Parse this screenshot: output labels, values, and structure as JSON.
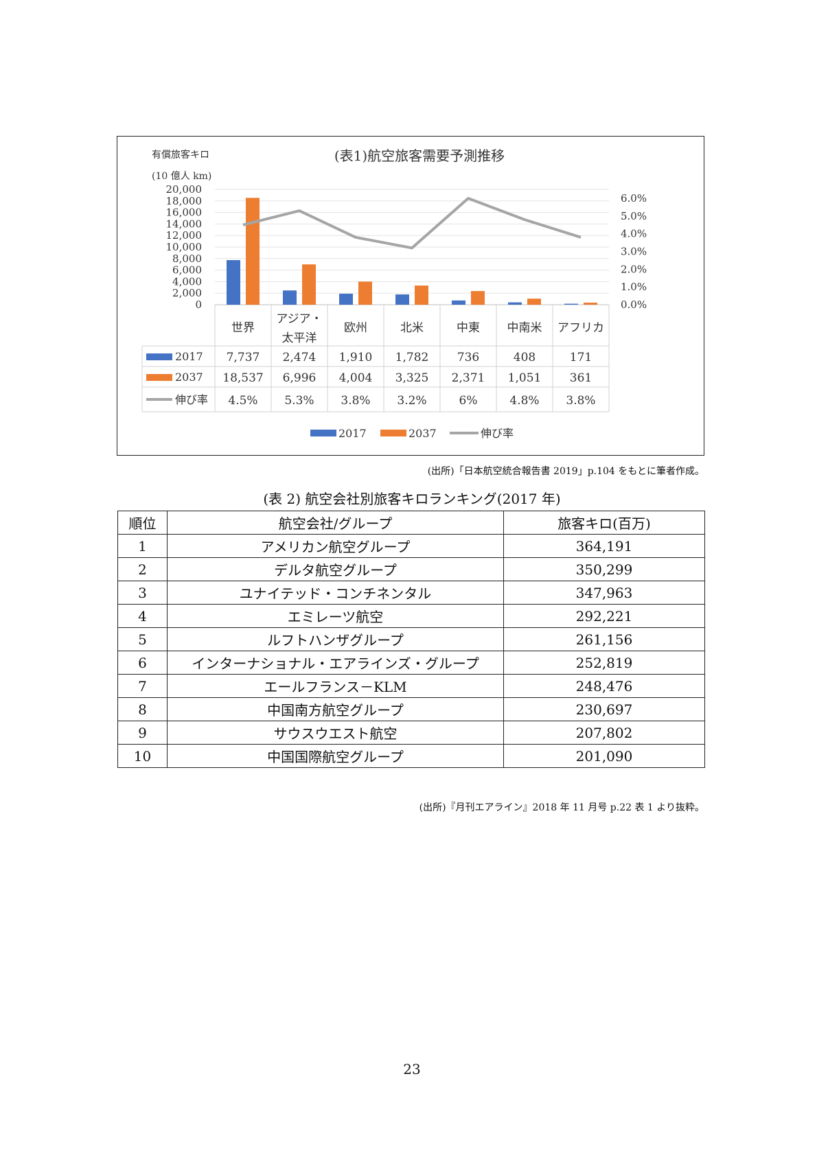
{
  "chart_data": {
    "type": "bar",
    "title": "(表1)航空旅客需要予測推移",
    "ylabel_line1": "有償旅客キロ",
    "ylabel_line2": "(10 億人 km)",
    "categories": [
      "世界",
      "アジア・\n太平洋",
      "欧州",
      "北米",
      "中東",
      "中南米",
      "アフリカ"
    ],
    "series": [
      {
        "name": "2017",
        "kind": "bar",
        "color": "#4472c4",
        "axis": "left",
        "values": [
          7737,
          2474,
          1910,
          1782,
          736,
          408,
          171
        ],
        "labels": [
          "7,737",
          "2,474",
          "1,910",
          "1,782",
          "736",
          "408",
          "171"
        ]
      },
      {
        "name": "2037",
        "kind": "bar",
        "color": "#ed7d31",
        "axis": "left",
        "values": [
          18537,
          6996,
          4004,
          3325,
          2371,
          1051,
          361
        ],
        "labels": [
          "18,537",
          "6,996",
          "4,004",
          "3,325",
          "2,371",
          "1,051",
          "361"
        ]
      },
      {
        "name": "伸び率",
        "kind": "line",
        "color": "#a5a5a5",
        "axis": "right",
        "values": [
          4.5,
          5.3,
          3.8,
          3.2,
          6.0,
          4.8,
          3.8
        ],
        "labels": [
          "4.5%",
          "5.3%",
          "3.8%",
          "3.2%",
          "6%",
          "4.8%",
          "3.8%"
        ]
      }
    ],
    "ylim_left": [
      0,
      20000
    ],
    "yticks_left": [
      "0",
      "2,000",
      "4,000",
      "6,000",
      "8,000",
      "10,000",
      "12,000",
      "14,000",
      "16,000",
      "18,000",
      "20,000"
    ],
    "ylim_right": [
      0,
      6.0
    ],
    "yticks_right": [
      "0.0%",
      "1.0%",
      "2.0%",
      "3.0%",
      "4.0%",
      "5.0%",
      "6.0%"
    ],
    "grid": true,
    "legend_position": "bottom",
    "data_table": true
  },
  "source1": "(出所)「日本航空統合報告書 2019」p.104 をもとに筆者作成。",
  "table2": {
    "title": "(表 2) 航空会社別旅客キロランキング(2017 年)",
    "headers": [
      "順位",
      "航空会社/グループ",
      "旅客キロ(百万)"
    ],
    "rows": [
      [
        "1",
        "アメリカン航空グループ",
        "364,191"
      ],
      [
        "2",
        "デルタ航空グループ",
        "350,299"
      ],
      [
        "3",
        "ユナイテッド・コンチネンタル",
        "347,963"
      ],
      [
        "4",
        "エミレーツ航空",
        "292,221"
      ],
      [
        "5",
        "ルフトハンザグループ",
        "261,156"
      ],
      [
        "6",
        "インターナショナル・エアラインズ・グループ",
        "252,819"
      ],
      [
        "7",
        "エールフランス－KLM",
        "248,476"
      ],
      [
        "8",
        "中国南方航空グループ",
        "230,697"
      ],
      [
        "9",
        "サウスウエスト航空",
        "207,802"
      ],
      [
        "10",
        "中国国際航空グループ",
        "201,090"
      ]
    ]
  },
  "source2": "(出所)『月刊エアライン』2018 年 11 月号 p.22 表 1 より抜粋。",
  "page_number": "23"
}
